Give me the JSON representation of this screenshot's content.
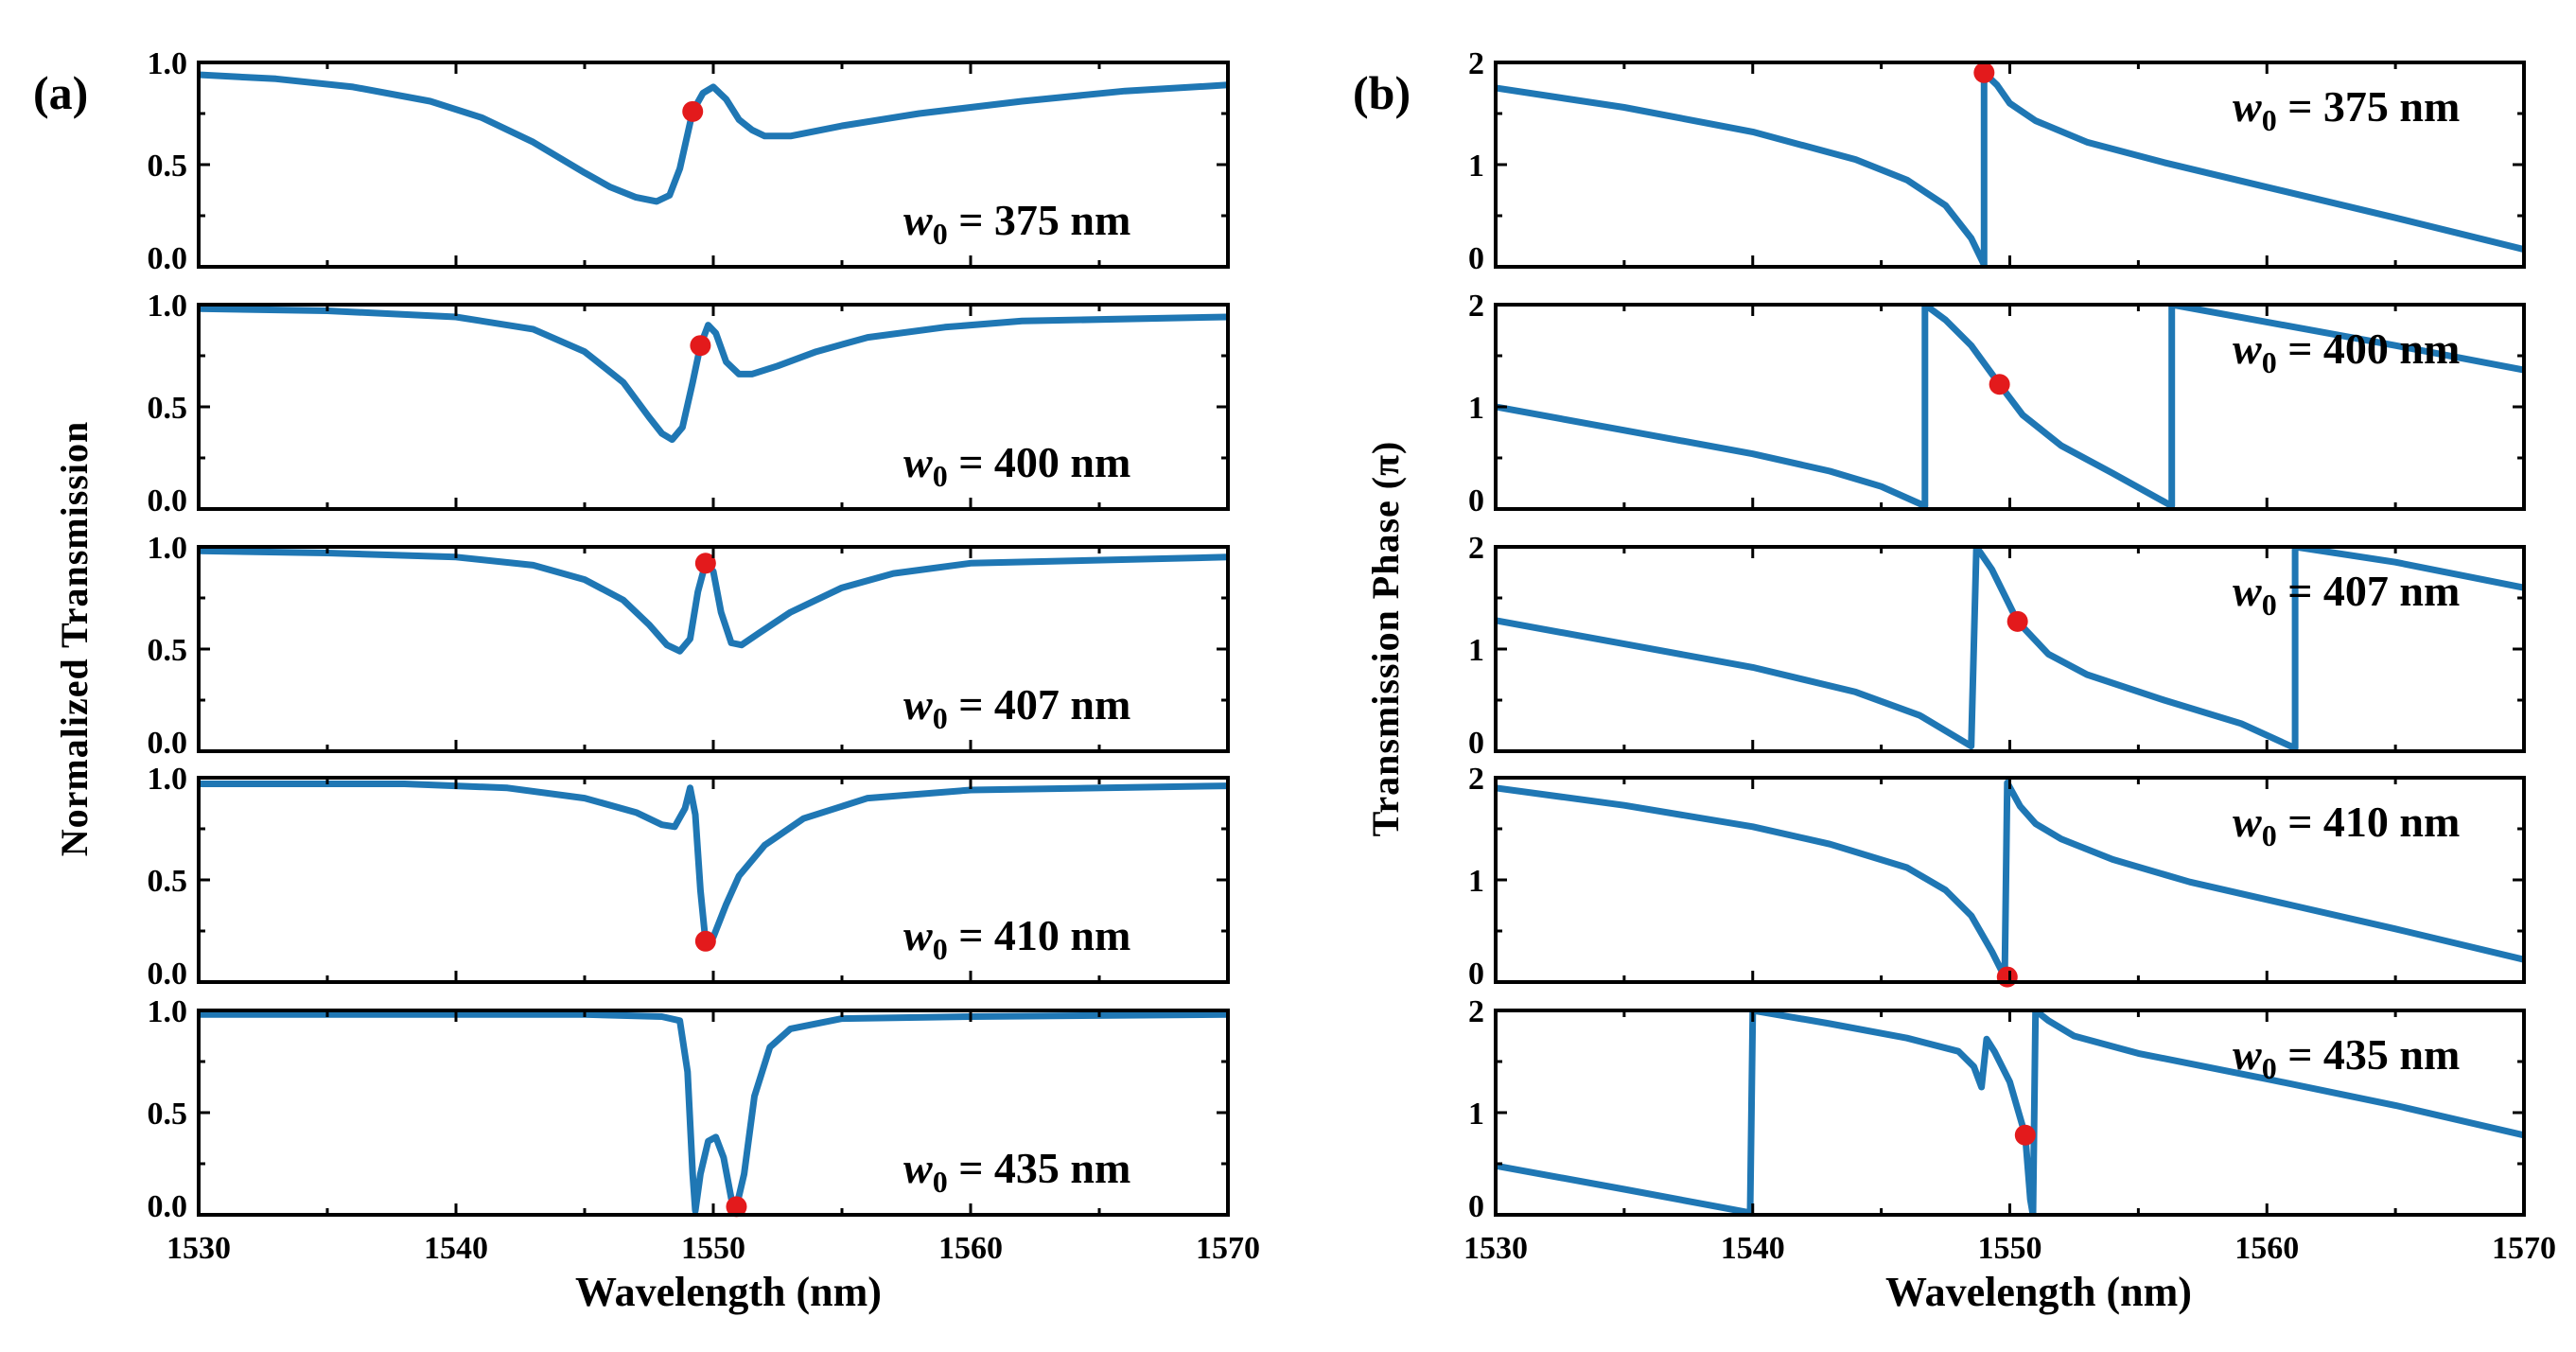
{
  "chart_data": [
    {
      "panel_label": "(a)",
      "type": "line",
      "xlabel": "Wavelength (nm)",
      "ylabel": "Normalized  Transmission",
      "xlim": [
        1530,
        1570
      ],
      "ylim": [
        0,
        1
      ],
      "xticks": [
        "1530",
        "1540",
        "1550",
        "1560",
        "1570"
      ],
      "yticks": [
        "0.0",
        "0.5",
        "1.0"
      ],
      "subplots": [
        {
          "label": {
            "var": "w",
            "sub": "0",
            "text": " = 375 nm"
          },
          "marker": {
            "x": 1549.2,
            "y": 0.76
          },
          "points": [
            [
              1530,
              0.94
            ],
            [
              1533,
              0.92
            ],
            [
              1536,
              0.88
            ],
            [
              1539,
              0.81
            ],
            [
              1541,
              0.73
            ],
            [
              1543,
              0.61
            ],
            [
              1545,
              0.46
            ],
            [
              1546,
              0.39
            ],
            [
              1547,
              0.34
            ],
            [
              1547.8,
              0.32
            ],
            [
              1548.3,
              0.35
            ],
            [
              1548.7,
              0.48
            ],
            [
              1549.2,
              0.76
            ],
            [
              1549.6,
              0.85
            ],
            [
              1550,
              0.88
            ],
            [
              1550.5,
              0.82
            ],
            [
              1551,
              0.72
            ],
            [
              1551.5,
              0.67
            ],
            [
              1552,
              0.64
            ],
            [
              1553,
              0.64
            ],
            [
              1555,
              0.69
            ],
            [
              1558,
              0.75
            ],
            [
              1562,
              0.81
            ],
            [
              1566,
              0.86
            ],
            [
              1570,
              0.89
            ]
          ]
        },
        {
          "label": {
            "var": "w",
            "sub": "0",
            "text": " = 400 nm"
          },
          "marker": {
            "x": 1549.5,
            "y": 0.8
          },
          "points": [
            [
              1530,
              0.98
            ],
            [
              1535,
              0.97
            ],
            [
              1540,
              0.94
            ],
            [
              1543,
              0.88
            ],
            [
              1545,
              0.77
            ],
            [
              1546.5,
              0.62
            ],
            [
              1547.5,
              0.45
            ],
            [
              1548,
              0.37
            ],
            [
              1548.4,
              0.34
            ],
            [
              1548.8,
              0.4
            ],
            [
              1549.2,
              0.62
            ],
            [
              1549.5,
              0.8
            ],
            [
              1549.8,
              0.9
            ],
            [
              1550.1,
              0.86
            ],
            [
              1550.5,
              0.72
            ],
            [
              1551,
              0.66
            ],
            [
              1551.5,
              0.66
            ],
            [
              1552.5,
              0.7
            ],
            [
              1554,
              0.77
            ],
            [
              1556,
              0.84
            ],
            [
              1559,
              0.89
            ],
            [
              1562,
              0.92
            ],
            [
              1570,
              0.94
            ]
          ]
        },
        {
          "label": {
            "var": "w",
            "sub": "0",
            "text": " = 407 nm"
          },
          "marker": {
            "x": 1549.7,
            "y": 0.92
          },
          "points": [
            [
              1530,
              0.98
            ],
            [
              1535,
              0.97
            ],
            [
              1540,
              0.95
            ],
            [
              1543,
              0.91
            ],
            [
              1545,
              0.84
            ],
            [
              1546.5,
              0.74
            ],
            [
              1547.5,
              0.62
            ],
            [
              1548.2,
              0.52
            ],
            [
              1548.7,
              0.49
            ],
            [
              1549.1,
              0.55
            ],
            [
              1549.4,
              0.78
            ],
            [
              1549.7,
              0.92
            ],
            [
              1550,
              0.88
            ],
            [
              1550.3,
              0.68
            ],
            [
              1550.7,
              0.53
            ],
            [
              1551.1,
              0.52
            ],
            [
              1551.8,
              0.58
            ],
            [
              1553,
              0.68
            ],
            [
              1555,
              0.8
            ],
            [
              1557,
              0.87
            ],
            [
              1560,
              0.92
            ],
            [
              1570,
              0.95
            ]
          ]
        },
        {
          "label": {
            "var": "w",
            "sub": "0",
            "text": " = 410 nm"
          },
          "marker": {
            "x": 1549.7,
            "y": 0.2
          },
          "points": [
            [
              1530,
              0.97
            ],
            [
              1538,
              0.97
            ],
            [
              1542,
              0.95
            ],
            [
              1545,
              0.9
            ],
            [
              1547,
              0.83
            ],
            [
              1548,
              0.77
            ],
            [
              1548.5,
              0.76
            ],
            [
              1548.9,
              0.85
            ],
            [
              1549.1,
              0.95
            ],
            [
              1549.3,
              0.82
            ],
            [
              1549.5,
              0.45
            ],
            [
              1549.7,
              0.2
            ],
            [
              1550,
              0.22
            ],
            [
              1550.5,
              0.38
            ],
            [
              1551,
              0.52
            ],
            [
              1552,
              0.67
            ],
            [
              1553.5,
              0.8
            ],
            [
              1556,
              0.9
            ],
            [
              1560,
              0.94
            ],
            [
              1570,
              0.96
            ]
          ]
        },
        {
          "label": {
            "var": "w",
            "sub": "0",
            "text": " = 435 nm"
          },
          "marker": {
            "x": 1550.9,
            "y": 0.04
          },
          "points": [
            [
              1530,
              0.98
            ],
            [
              1545,
              0.98
            ],
            [
              1548,
              0.97
            ],
            [
              1548.7,
              0.95
            ],
            [
              1549,
              0.7
            ],
            [
              1549.2,
              0.2
            ],
            [
              1549.3,
              0.02
            ],
            [
              1549.5,
              0.2
            ],
            [
              1549.8,
              0.36
            ],
            [
              1550.1,
              0.38
            ],
            [
              1550.4,
              0.28
            ],
            [
              1550.7,
              0.08
            ],
            [
              1550.9,
              0.04
            ],
            [
              1551.2,
              0.2
            ],
            [
              1551.6,
              0.58
            ],
            [
              1552.2,
              0.82
            ],
            [
              1553,
              0.91
            ],
            [
              1555,
              0.96
            ],
            [
              1560,
              0.97
            ],
            [
              1570,
              0.98
            ]
          ]
        }
      ]
    },
    {
      "panel_label": "(b)",
      "type": "line",
      "xlabel": "Wavelength (nm)",
      "ylabel": "Transmission  Phase (π)",
      "xlim": [
        1530,
        1570
      ],
      "ylim": [
        0,
        2
      ],
      "xticks": [
        "1530",
        "1540",
        "1550",
        "1560",
        "1570"
      ],
      "yticks": [
        "0",
        "1",
        "2"
      ],
      "subplots": [
        {
          "label": {
            "var": "w",
            "sub": "0",
            "text": " = 375 nm"
          },
          "marker": {
            "x": 1549.0,
            "y": 1.9
          },
          "points": [
            [
              1530,
              1.75
            ],
            [
              1535,
              1.56
            ],
            [
              1540,
              1.32
            ],
            [
              1544,
              1.05
            ],
            [
              1546,
              0.85
            ],
            [
              1547.5,
              0.6
            ],
            [
              1548.5,
              0.28
            ],
            [
              1549,
              0.02
            ],
            [
              1549,
              1.9
            ],
            [
              1549.5,
              1.78
            ],
            [
              1550,
              1.6
            ],
            [
              1551,
              1.43
            ],
            [
              1553,
              1.22
            ],
            [
              1556,
              1.02
            ],
            [
              1560,
              0.78
            ],
            [
              1565,
              0.48
            ],
            [
              1570,
              0.17
            ]
          ]
        },
        {
          "label": {
            "var": "w",
            "sub": "0",
            "text": " = 400 nm"
          },
          "marker": {
            "x": 1549.6,
            "y": 1.22
          },
          "points": [
            [
              1530,
              1.0
            ],
            [
              1535,
              0.77
            ],
            [
              1540,
              0.54
            ],
            [
              1543,
              0.37
            ],
            [
              1545,
              0.22
            ],
            [
              1546.7,
              0.03
            ],
            [
              1546.7,
              2.0
            ],
            [
              1547.5,
              1.85
            ],
            [
              1548.5,
              1.6
            ],
            [
              1549.6,
              1.22
            ],
            [
              1550.5,
              0.92
            ],
            [
              1552,
              0.62
            ],
            [
              1554,
              0.35
            ],
            [
              1556.3,
              0.03
            ],
            [
              1556.3,
              2.0
            ],
            [
              1560,
              1.83
            ],
            [
              1565,
              1.6
            ],
            [
              1570,
              1.36
            ]
          ]
        },
        {
          "label": {
            "var": "w",
            "sub": "0",
            "text": " = 407 nm"
          },
          "marker": {
            "x": 1550.3,
            "y": 1.27
          },
          "points": [
            [
              1530,
              1.28
            ],
            [
              1535,
              1.05
            ],
            [
              1540,
              0.82
            ],
            [
              1544,
              0.58
            ],
            [
              1546.5,
              0.35
            ],
            [
              1548.5,
              0.05
            ],
            [
              1548.7,
              2.0
            ],
            [
              1549.3,
              1.78
            ],
            [
              1550.3,
              1.27
            ],
            [
              1551.5,
              0.95
            ],
            [
              1553,
              0.75
            ],
            [
              1556,
              0.5
            ],
            [
              1559,
              0.27
            ],
            [
              1561.1,
              0.03
            ],
            [
              1561.1,
              2.0
            ],
            [
              1565,
              1.85
            ],
            [
              1570,
              1.6
            ]
          ]
        },
        {
          "label": {
            "var": "w",
            "sub": "0",
            "text": " = 410 nm"
          },
          "marker": {
            "x": 1549.9,
            "y": 0.05
          },
          "points": [
            [
              1530,
              1.9
            ],
            [
              1535,
              1.73
            ],
            [
              1540,
              1.52
            ],
            [
              1543,
              1.35
            ],
            [
              1546,
              1.12
            ],
            [
              1547.5,
              0.9
            ],
            [
              1548.5,
              0.65
            ],
            [
              1549.3,
              0.3
            ],
            [
              1549.8,
              0.05
            ],
            [
              1549.9,
              1.95
            ],
            [
              1550.4,
              1.72
            ],
            [
              1551,
              1.55
            ],
            [
              1552,
              1.4
            ],
            [
              1554,
              1.2
            ],
            [
              1557,
              0.98
            ],
            [
              1561,
              0.75
            ],
            [
              1565,
              0.52
            ],
            [
              1570,
              0.22
            ]
          ]
        },
        {
          "label": {
            "var": "w",
            "sub": "0",
            "text": " = 435 nm"
          },
          "marker": {
            "x": 1550.6,
            "y": 0.78
          },
          "points": [
            [
              1530,
              0.48
            ],
            [
              1535,
              0.25
            ],
            [
              1539.9,
              0.02
            ],
            [
              1540,
              2.0
            ],
            [
              1543,
              1.87
            ],
            [
              1546,
              1.73
            ],
            [
              1548,
              1.6
            ],
            [
              1548.6,
              1.45
            ],
            [
              1548.9,
              1.25
            ],
            [
              1549.1,
              1.72
            ],
            [
              1549.4,
              1.6
            ],
            [
              1550,
              1.3
            ],
            [
              1550.6,
              0.78
            ],
            [
              1550.8,
              0.15
            ],
            [
              1550.9,
              0.0
            ],
            [
              1551,
              2.0
            ],
            [
              1551.5,
              1.9
            ],
            [
              1552.5,
              1.75
            ],
            [
              1555,
              1.58
            ],
            [
              1560,
              1.33
            ],
            [
              1565,
              1.07
            ],
            [
              1570,
              0.78
            ]
          ]
        }
      ]
    }
  ]
}
